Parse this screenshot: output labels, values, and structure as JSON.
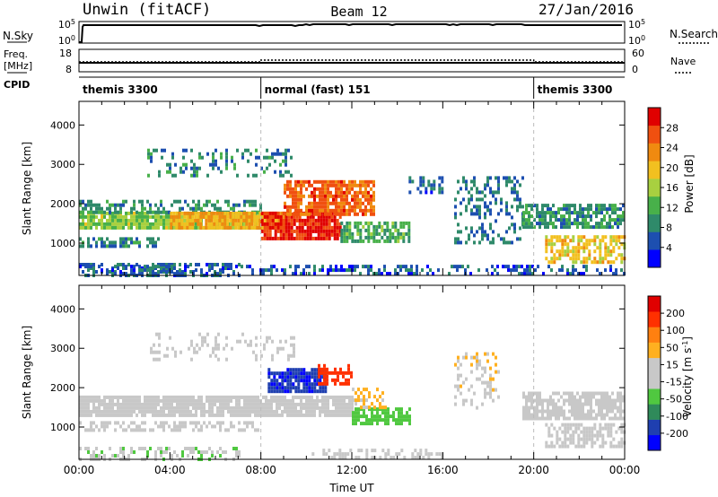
{
  "header": {
    "station": "Unwin (fitACF)",
    "beam": "Beam 12",
    "date": "27/Jan/2016"
  },
  "summary_panels": {
    "nsky": {
      "label": "N.Sky",
      "ticks_left": [
        "10^5",
        "10^0"
      ],
      "ticks_right": [
        "10^5",
        "10^0"
      ],
      "right_label": "N.Search"
    },
    "freq": {
      "label_line1": "Freq.",
      "label_line2": "[MHz]",
      "ticks_left": [
        "18",
        "8"
      ],
      "ticks_right": [
        "60",
        "0"
      ],
      "right_label": "Nave"
    },
    "cpid": {
      "label": "CPID",
      "segments": [
        {
          "name": "themis 3300",
          "start_hour": 0,
          "end_hour": 8
        },
        {
          "name": "normal (fast) 151",
          "start_hour": 8,
          "end_hour": 20
        },
        {
          "name": "themis 3300",
          "start_hour": 20,
          "end_hour": 24
        }
      ]
    }
  },
  "colors": {
    "power": [
      "#0000ff",
      "#1d4fb0",
      "#2f8a6a",
      "#48b04a",
      "#a8d040",
      "#f2c020",
      "#f08a10",
      "#f05010",
      "#e00000"
    ],
    "velocity": [
      "#0000ff",
      "#1f3fb0",
      "#2f8a5a",
      "#50c840",
      "#c8c8c8",
      "#c8c8c8",
      "#ffb020",
      "#ff8010",
      "#ff3000",
      "#e00000"
    ],
    "ground_scatter": "#c0c0c0"
  },
  "chart_data": [
    {
      "type": "heatmap",
      "name": "power",
      "xlabel": "",
      "ylabel": "Slant Range [km]",
      "x_range_hours": [
        0,
        24
      ],
      "ylim": [
        180,
        4600
      ],
      "yticks": [
        1000,
        2000,
        3000,
        4000
      ],
      "xticks_hours": [
        0,
        4,
        8,
        12,
        16,
        20,
        24
      ],
      "colorbar": {
        "label": "Power [dB]",
        "ticks": [
          "28",
          "24",
          "20",
          "16",
          "12",
          "8",
          "4"
        ],
        "range": [
          0,
          30
        ]
      },
      "regions": [
        {
          "t0": 0.0,
          "t1": 8.0,
          "r0": 1350,
          "r1": 1800,
          "level": 14,
          "density": 0.85
        },
        {
          "t0": 0.0,
          "t1": 8.0,
          "r0": 1800,
          "r1": 2100,
          "level": 9,
          "density": 0.5
        },
        {
          "t0": 0.0,
          "t1": 3.5,
          "r0": 900,
          "r1": 1150,
          "level": 8,
          "density": 0.6
        },
        {
          "t0": 0.0,
          "t1": 7.0,
          "r0": 200,
          "r1": 500,
          "level": 6,
          "density": 0.45
        },
        {
          "t0": 4.0,
          "t1": 9.0,
          "r0": 1400,
          "r1": 1800,
          "level": 20,
          "density": 0.9
        },
        {
          "t0": 8.0,
          "t1": 11.5,
          "r0": 1100,
          "r1": 1800,
          "level": 27,
          "density": 0.9
        },
        {
          "t0": 9.0,
          "t1": 13.0,
          "r0": 1700,
          "r1": 2600,
          "level": 24,
          "density": 0.8
        },
        {
          "t0": 11.5,
          "t1": 14.5,
          "r0": 1050,
          "r1": 1550,
          "level": 11,
          "density": 0.7
        },
        {
          "t0": 14.5,
          "t1": 16.0,
          "r0": 2300,
          "r1": 2700,
          "level": 6,
          "density": 0.5
        },
        {
          "t0": 16.5,
          "t1": 19.5,
          "r0": 1000,
          "r1": 2700,
          "level": 7,
          "density": 0.3
        },
        {
          "t0": 19.5,
          "t1": 24.0,
          "r0": 1400,
          "r1": 2000,
          "level": 9,
          "density": 0.7
        },
        {
          "t0": 20.5,
          "t1": 24.0,
          "r0": 500,
          "r1": 1200,
          "level": 18,
          "density": 0.6
        },
        {
          "t0": 3.0,
          "t1": 9.5,
          "r0": 2700,
          "r1": 3400,
          "level": 8,
          "density": 0.25
        },
        {
          "t0": 0.0,
          "t1": 24.0,
          "r0": 200,
          "r1": 450,
          "level": 5,
          "density": 0.35
        }
      ]
    },
    {
      "type": "heatmap",
      "name": "velocity",
      "xlabel": "Time UT",
      "ylabel": "Slant Range [km]",
      "x_range_hours": [
        0,
        24
      ],
      "ylim": [
        180,
        4600
      ],
      "yticks": [
        1000,
        2000,
        3000,
        4000
      ],
      "xticks_hours": [
        0,
        4,
        8,
        12,
        16,
        20,
        24
      ],
      "xtick_labels": [
        "00:00",
        "04:00",
        "08:00",
        "12:00",
        "16:00",
        "20:00",
        "00:00"
      ],
      "colorbar": {
        "label": "Velocity [m s^-1]",
        "ticks": [
          "200",
          "100",
          "50",
          "15",
          "-15",
          "-50",
          "-100",
          "-200"
        ],
        "range": [
          -250,
          250
        ]
      },
      "regions": [
        {
          "t0": 0.0,
          "t1": 12.0,
          "r0": 1300,
          "r1": 1800,
          "level": 0,
          "density": 0.85
        },
        {
          "t0": 0.0,
          "t1": 7.0,
          "r0": 200,
          "r1": 500,
          "level": -40,
          "density": 0.4
        },
        {
          "t0": 0.0,
          "t1": 8.0,
          "r0": 900,
          "r1": 1150,
          "level": 0,
          "density": 0.5
        },
        {
          "t0": 8.3,
          "t1": 10.8,
          "r0": 1950,
          "r1": 2500,
          "level": -190,
          "density": 0.85
        },
        {
          "t0": 10.5,
          "t1": 12.0,
          "r0": 2100,
          "r1": 2600,
          "level": 180,
          "density": 0.6
        },
        {
          "t0": 12.0,
          "t1": 14.5,
          "r0": 1050,
          "r1": 1500,
          "level": -70,
          "density": 0.7
        },
        {
          "t0": 12.0,
          "t1": 13.5,
          "r0": 1500,
          "r1": 2000,
          "level": 60,
          "density": 0.5
        },
        {
          "t0": 16.5,
          "t1": 18.5,
          "r0": 1500,
          "r1": 2900,
          "level": 40,
          "density": 0.25
        },
        {
          "t0": 19.5,
          "t1": 24.0,
          "r0": 1200,
          "r1": 1900,
          "level": 0,
          "density": 0.75
        },
        {
          "t0": 20.5,
          "t1": 24.0,
          "r0": 500,
          "r1": 1100,
          "level": 0,
          "density": 0.55
        },
        {
          "t0": 3.0,
          "t1": 9.5,
          "r0": 2700,
          "r1": 3400,
          "level": -20,
          "density": 0.2
        },
        {
          "t0": 10.0,
          "t1": 16.0,
          "r0": 200,
          "r1": 450,
          "level": -30,
          "density": 0.35
        }
      ]
    }
  ]
}
